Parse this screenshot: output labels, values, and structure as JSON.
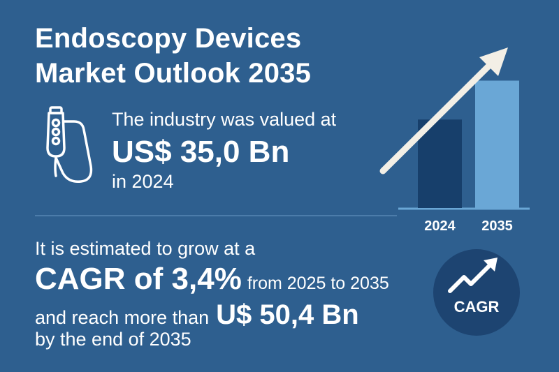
{
  "title": {
    "line1": "Endoscopy Devices",
    "line2": "Market Outlook 2035"
  },
  "valuation": {
    "intro": "The industry was valued at",
    "value": "US$ 35,0 Bn",
    "year": "in 2024"
  },
  "forecast": {
    "intro": "It is estimated to grow at a",
    "cagr": "CAGR of 3,4%",
    "range": "from 2025 to 2035",
    "reach_text": "and reach more than",
    "reach_value": "U$ 50,4 Bn",
    "end": "by the end of 2035"
  },
  "badge": {
    "label": "CAGR",
    "icon": "trend-up-icon"
  },
  "chart_data": {
    "type": "bar",
    "categories": [
      "2024",
      "2035"
    ],
    "values": [
      35.0,
      50.4
    ],
    "title": "",
    "xlabel": "",
    "ylabel": "",
    "ylim": [
      0,
      58
    ],
    "colors": [
      "#173f6b",
      "#6aa7d6"
    ],
    "grid": false,
    "annotation": "upward-arrow"
  },
  "colors": {
    "background": "#2e5f8f",
    "text": "#ffffff",
    "arrow": "#f3efe6",
    "badge_bg": "#1d4471"
  }
}
